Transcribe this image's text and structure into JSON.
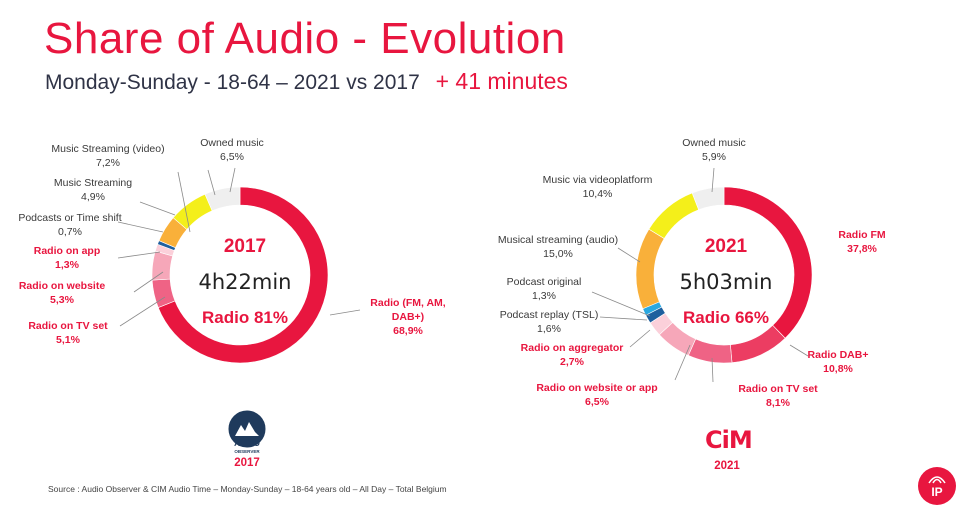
{
  "header": {
    "title": "Share of Audio - Evolution",
    "subtitle": "Monday-Sunday - 18-64 – 2021 vs 2017",
    "delta": "+ 41 minutes"
  },
  "chart_data": [
    {
      "type": "pie",
      "variant": "donut",
      "year": "2017",
      "center_time": "4h22min",
      "center_radio": "Radio 81%",
      "slices": [
        {
          "label": "Radio (FM, AM, DAB+)",
          "value": 68.9,
          "value_label": "68,9%",
          "color": "#e8163f"
        },
        {
          "label": "Radio on TV set",
          "value": 5.1,
          "value_label": "5,1%",
          "color": "#ef6385"
        },
        {
          "label": "Radio on website",
          "value": 5.3,
          "value_label": "5,3%",
          "color": "#f6a7b9"
        },
        {
          "label": "Radio on app",
          "value": 1.3,
          "value_label": "1,3%",
          "color": "#fbd0da"
        },
        {
          "label": "Podcasts or Time shift",
          "value": 0.7,
          "value_label": "0,7%",
          "color": "#1e5f9e"
        },
        {
          "label": "Music Streaming",
          "value": 4.9,
          "value_label": "4,9%",
          "color": "#f9b03a"
        },
        {
          "label": "Music Streaming (video)",
          "value": 7.2,
          "value_label": "7,2%",
          "color": "#f4ef1a"
        },
        {
          "label": "Owned music",
          "value": 6.5,
          "value_label": "6,5%",
          "color": "#efefef"
        }
      ]
    },
    {
      "type": "pie",
      "variant": "donut",
      "year": "2021",
      "center_time": "5h03min",
      "center_radio": "Radio 66%",
      "slices": [
        {
          "label": "Radio FM",
          "value": 37.8,
          "value_label": "37,8%",
          "color": "#e8163f"
        },
        {
          "label": "Radio DAB+",
          "value": 10.8,
          "value_label": "10,8%",
          "color": "#ec3d62"
        },
        {
          "label": "Radio on TV set",
          "value": 8.1,
          "value_label": "8,1%",
          "color": "#ef6385"
        },
        {
          "label": "Radio on website or app",
          "value": 6.5,
          "value_label": "6,5%",
          "color": "#f6a7b9"
        },
        {
          "label": "Radio on aggregator",
          "value": 2.7,
          "value_label": "2,7%",
          "color": "#fbd0da"
        },
        {
          "label": "Podcast replay (TSL)",
          "value": 1.6,
          "value_label": "1,6%",
          "color": "#1e5f9e"
        },
        {
          "label": "Podcast original",
          "value": 1.3,
          "value_label": "1,3%",
          "color": "#2aa8e0"
        },
        {
          "label": "Musical streaming (audio)",
          "value": 15.0,
          "value_label": "15,0%",
          "color": "#f9b03a"
        },
        {
          "label": "Music via videoplatform",
          "value": 10.4,
          "value_label": "10,4%",
          "color": "#f4ef1a"
        },
        {
          "label": "Owned music",
          "value": 5.9,
          "value_label": "5,9%",
          "color": "#efefef"
        }
      ]
    }
  ],
  "logos": {
    "left_text_top": "AUDIO",
    "left_text_bottom": "OBSERVER",
    "left_year": "2017",
    "right_text": "CiM",
    "right_year": "2021",
    "badge_text": "IP"
  },
  "source": "Source : Audio Observer & CIM Audio Time – Monday-Sunday – 18-64 years old – All Day –  Total Belgium"
}
